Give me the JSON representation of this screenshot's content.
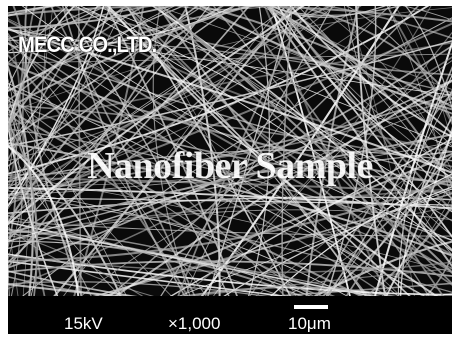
{
  "image": {
    "brand_text": "MECC CO.,LTD.",
    "watermark_text": "Nanofiber Sample"
  },
  "info_bar": {
    "accelerating_voltage": "15kV",
    "magnification": "×1,000",
    "scale_label": "10μm"
  }
}
